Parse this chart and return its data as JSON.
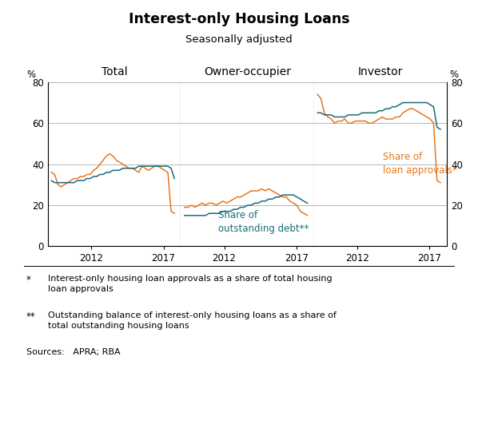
{
  "title": "Interest-only Housing Loans",
  "subtitle": "Seasonally adjusted",
  "panel_labels": [
    "Total",
    "Owner-occupier",
    "Investor"
  ],
  "yticks": [
    0,
    20,
    40,
    60,
    80
  ],
  "ylim": [
    0,
    80
  ],
  "color_orange": "#E8761A",
  "color_teal": "#1B6A7A",
  "annotation_orange": "Share of\nloan approvals*",
  "annotation_teal": "Share of\noutstanding debt**",
  "footnote1_symbol": "*",
  "footnote1_text": "Interest-only housing loan approvals as a share of total housing\nloan approvals",
  "footnote2_symbol": "**",
  "footnote2_text": "Outstanding balance of interest-only housing loans as a share of\ntotal outstanding housing loans",
  "sources": "Sources:   APRA; RBA",
  "total_orange": [
    36,
    35,
    30,
    29,
    30,
    31,
    32,
    33,
    33,
    34,
    34,
    35,
    35,
    37,
    38,
    40,
    42,
    44,
    45,
    44,
    42,
    41,
    40,
    39,
    38,
    38,
    37,
    36,
    39,
    38,
    37,
    38,
    39,
    39,
    38,
    37,
    36,
    17,
    16
  ],
  "total_teal": [
    32,
    31,
    31,
    31,
    31,
    31,
    31,
    31,
    32,
    32,
    32,
    33,
    33,
    34,
    34,
    35,
    35,
    36,
    36,
    37,
    37,
    37,
    38,
    38,
    38,
    38,
    38,
    39,
    39,
    39,
    39,
    39,
    39,
    39,
    39,
    39,
    39,
    38,
    33
  ],
  "owner_orange": [
    19,
    19,
    20,
    19,
    20,
    21,
    20,
    21,
    21,
    20,
    21,
    22,
    21,
    22,
    23,
    24,
    24,
    25,
    26,
    27,
    27,
    27,
    28,
    27,
    28,
    27,
    26,
    25,
    24,
    24,
    22,
    21,
    20,
    17,
    16,
    15
  ],
  "owner_teal": [
    15,
    15,
    15,
    15,
    15,
    15,
    15,
    16,
    16,
    16,
    16,
    17,
    17,
    17,
    18,
    18,
    19,
    19,
    20,
    20,
    21,
    21,
    22,
    22,
    23,
    23,
    24,
    24,
    25,
    25,
    25,
    25,
    24,
    23,
    22,
    21
  ],
  "investor_orange": [
    74,
    72,
    65,
    63,
    62,
    60,
    61,
    61,
    62,
    60,
    60,
    61,
    61,
    61,
    61,
    60,
    60,
    61,
    62,
    63,
    62,
    62,
    62,
    63,
    63,
    65,
    66,
    67,
    67,
    66,
    65,
    64,
    63,
    62,
    60,
    32,
    31
  ],
  "investor_teal": [
    65,
    65,
    64,
    64,
    64,
    63,
    63,
    63,
    63,
    64,
    64,
    64,
    64,
    65,
    65,
    65,
    65,
    65,
    66,
    66,
    67,
    67,
    68,
    68,
    69,
    70,
    70,
    70,
    70,
    70,
    70,
    70,
    70,
    69,
    68,
    58,
    57
  ]
}
